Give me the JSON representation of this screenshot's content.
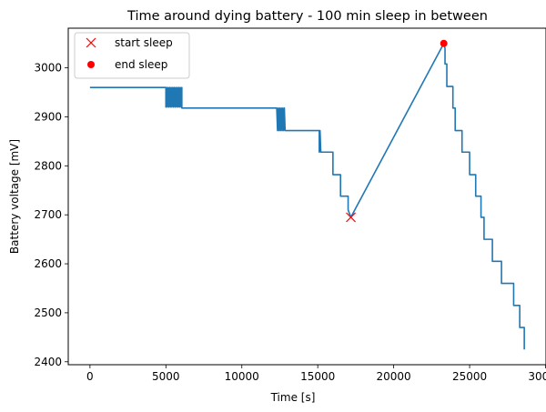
{
  "chart_data": {
    "type": "line",
    "title": "Time around dying battery - 100 min sleep in between",
    "xlabel": "Time [s]",
    "ylabel": "Battery voltage [mV]",
    "xlim": [
      -1430,
      30030
    ],
    "ylim": [
      2394,
      3081
    ],
    "xticks": [
      0,
      5000,
      10000,
      15000,
      20000,
      25000,
      30000
    ],
    "yticks": [
      2400,
      2500,
      2600,
      2700,
      2800,
      2900,
      3000
    ],
    "grid": false,
    "legend_position": "top-left",
    "colors": {
      "line": "#1f77b4",
      "markers": "#ff0000"
    },
    "series": [
      {
        "values": [
          [
            0,
            2960
          ],
          [
            5000,
            2960
          ],
          [
            5000,
            2920
          ],
          [
            5050,
            2960
          ],
          [
            5100,
            2920
          ],
          [
            5150,
            2960
          ],
          [
            5200,
            2920
          ],
          [
            5250,
            2960
          ],
          [
            5300,
            2920
          ],
          [
            5350,
            2960
          ],
          [
            5400,
            2920
          ],
          [
            5450,
            2960
          ],
          [
            5500,
            2920
          ],
          [
            5550,
            2960
          ],
          [
            5600,
            2920
          ],
          [
            5650,
            2960
          ],
          [
            5700,
            2920
          ],
          [
            5750,
            2960
          ],
          [
            5800,
            2920
          ],
          [
            5850,
            2960
          ],
          [
            5900,
            2920
          ],
          [
            5950,
            2960
          ],
          [
            6000,
            2920
          ],
          [
            6050,
            2960
          ],
          [
            6050,
            2918
          ],
          [
            12300,
            2918
          ],
          [
            12350,
            2872
          ],
          [
            12400,
            2918
          ],
          [
            12450,
            2872
          ],
          [
            12500,
            2918
          ],
          [
            12550,
            2872
          ],
          [
            12600,
            2918
          ],
          [
            12650,
            2872
          ],
          [
            12700,
            2918
          ],
          [
            12750,
            2872
          ],
          [
            12800,
            2918
          ],
          [
            12850,
            2872
          ],
          [
            15100,
            2872
          ],
          [
            15100,
            2828
          ],
          [
            15150,
            2872
          ],
          [
            15200,
            2828
          ],
          [
            16000,
            2828
          ],
          [
            16000,
            2782
          ],
          [
            16500,
            2782
          ],
          [
            16500,
            2738
          ],
          [
            17000,
            2738
          ],
          [
            17000,
            2710
          ],
          [
            17180,
            2695
          ],
          [
            23300,
            3050
          ],
          [
            23380,
            3040
          ],
          [
            23380,
            3008
          ],
          [
            23500,
            3008
          ],
          [
            23500,
            2962
          ],
          [
            23900,
            2962
          ],
          [
            23900,
            2918
          ],
          [
            23950,
            2918
          ],
          [
            23950,
            2918
          ],
          [
            24050,
            2918
          ],
          [
            24050,
            2872
          ],
          [
            24500,
            2872
          ],
          [
            24500,
            2828
          ],
          [
            25000,
            2828
          ],
          [
            25000,
            2782
          ],
          [
            25400,
            2782
          ],
          [
            25400,
            2738
          ],
          [
            25750,
            2738
          ],
          [
            25750,
            2695
          ],
          [
            25950,
            2695
          ],
          [
            25950,
            2650
          ],
          [
            26500,
            2650
          ],
          [
            26500,
            2605
          ],
          [
            27100,
            2605
          ],
          [
            27100,
            2560
          ],
          [
            27900,
            2560
          ],
          [
            27900,
            2515
          ],
          [
            28300,
            2515
          ],
          [
            28300,
            2470
          ],
          [
            28600,
            2470
          ],
          [
            28600,
            2425
          ]
        ]
      }
    ],
    "start_sleep": {
      "label": "start sleep",
      "x": 17180,
      "y": 2695
    },
    "end_sleep": {
      "label": "end sleep",
      "x": 23300,
      "y": 3050
    }
  }
}
